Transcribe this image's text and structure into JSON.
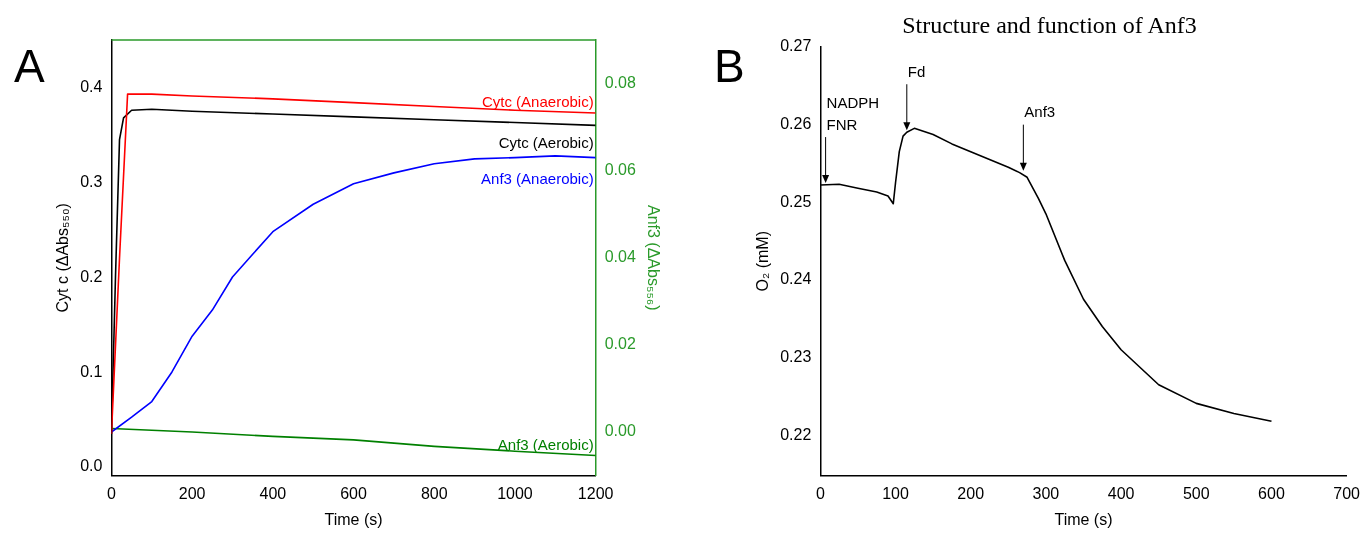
{
  "chart_data": [
    {
      "type": "line",
      "xlabel": "Time (s)",
      "ylabel": "Cyt c (ΔAbs₅₅₀)",
      "y2label": "Anf3 (ΔAbs₅₅₆)",
      "annotations": [
        "A"
      ],
      "xlim": [
        0,
        1200
      ],
      "xticks": [
        0,
        200,
        400,
        600,
        800,
        1000,
        1200
      ],
      "ylim": [
        -0.009,
        0.45
      ],
      "yticks": [
        {
          "value": 0,
          "label": "0.0"
        },
        0.1,
        0.2,
        0.3,
        0.4
      ],
      "y2lim": [
        -0.01,
        0.09
      ],
      "y2ticks": [
        {
          "value": 0,
          "label": "0.00"
        },
        0.02,
        0.04,
        0.06,
        0.08
      ],
      "series": [
        {
          "name": "Cytc (Anaerobic)",
          "color": "#ff0000",
          "x": [
            0,
            20,
            40,
            100,
            200,
            400,
            600,
            800,
            1000,
            1200
          ],
          "values": [
            0.035,
            0.22,
            0.393,
            0.393,
            0.391,
            0.388,
            0.384,
            0.38,
            0.376,
            0.373
          ]
        },
        {
          "name": "Cytc (Aerobic)",
          "color": "#000000",
          "x": [
            0,
            10,
            20,
            30,
            50,
            100,
            200,
            400,
            600,
            800,
            1000,
            1200
          ],
          "values": [
            0.035,
            0.2,
            0.345,
            0.368,
            0.376,
            0.377,
            0.375,
            0.372,
            0.369,
            0.366,
            0.363,
            0.36
          ]
        },
        {
          "name": "Anf3 (Anaerobic)",
          "color": "#0000ff",
          "axis": "y2",
          "x": [
            0,
            50,
            100,
            150,
            200,
            250,
            300,
            350,
            400,
            500,
            600,
            700,
            800,
            900,
            1000,
            1100,
            1200
          ],
          "values": [
            0.0,
            0.0034,
            0.007,
            0.0138,
            0.022,
            0.028,
            0.0356,
            0.0408,
            0.046,
            0.0523,
            0.057,
            0.0595,
            0.0616,
            0.0627,
            0.063,
            0.0634,
            0.063
          ]
        },
        {
          "name": "Anf3 (Aerobic)",
          "color": "#008000",
          "axis": "y2",
          "x": [
            0,
            200,
            400,
            600,
            800,
            1000,
            1200
          ],
          "values": [
            0.0008,
            0.0,
            -0.001,
            -0.0018,
            -0.0033,
            -0.0044,
            -0.0054
          ]
        }
      ]
    },
    {
      "type": "line",
      "title": "Structure and function of Anf3",
      "xlabel": "Time (s)",
      "ylabel": "O₂ (mM)",
      "annotations": [
        "B",
        {
          "text": "NADPH\nFNR",
          "x": 7,
          "y": 0.2522
        },
        {
          "text": "Fd",
          "x": 115,
          "y": 0.259
        },
        {
          "text": "Anf3",
          "x": 270,
          "y": 0.2538
        }
      ],
      "xlim": [
        0,
        700
      ],
      "xticks": [
        0,
        100,
        200,
        300,
        400,
        500,
        600,
        700
      ],
      "ylim": [
        0.2148,
        0.27
      ],
      "yticks": [
        0.22,
        0.23,
        0.24,
        0.25,
        0.26,
        0.27
      ],
      "series": [
        {
          "color": "#000000",
          "x": [
            0,
            25,
            50,
            75,
            90,
            97,
            100,
            105,
            110,
            115,
            125,
            150,
            175,
            200,
            225,
            250,
            265,
            275,
            290,
            300,
            325,
            350,
            375,
            400,
            450,
            500,
            550,
            600
          ],
          "values": [
            0.2522,
            0.2523,
            0.2518,
            0.2513,
            0.2508,
            0.2498,
            0.2525,
            0.2565,
            0.2585,
            0.259,
            0.2595,
            0.2587,
            0.2575,
            0.2565,
            0.2555,
            0.2545,
            0.2538,
            0.2532,
            0.2505,
            0.2485,
            0.2425,
            0.2375,
            0.234,
            0.231,
            0.2265,
            0.2241,
            0.2228,
            0.2218
          ]
        }
      ]
    }
  ]
}
